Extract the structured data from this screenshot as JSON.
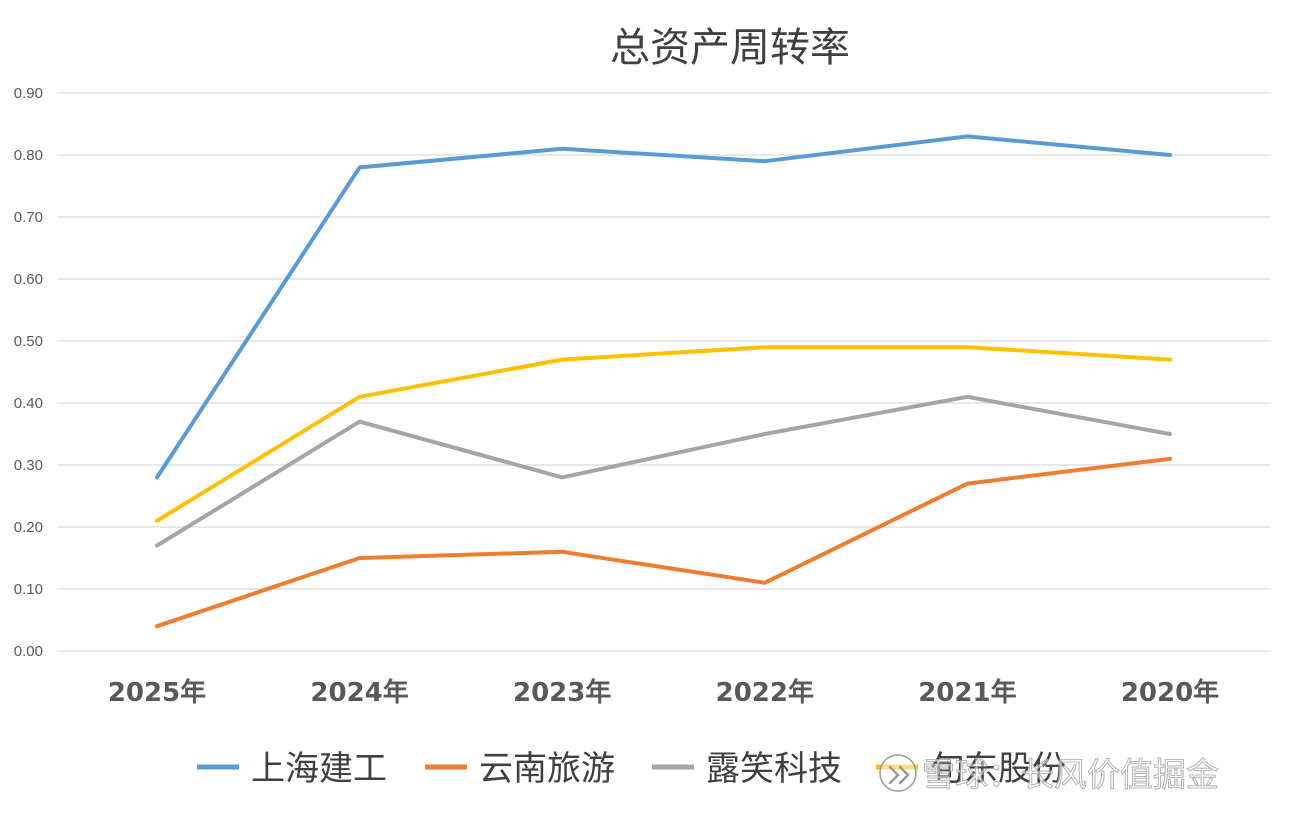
{
  "chart_data": {
    "type": "line",
    "title": "总资产周转率",
    "xlabel": "",
    "ylabel": "",
    "categories": [
      "2025年",
      "2024年",
      "2023年",
      "2022年",
      "2021年",
      "2020年"
    ],
    "ylim": [
      0,
      0.9
    ],
    "yticks": [
      "0.00",
      "0.10",
      "0.20",
      "0.30",
      "0.40",
      "0.50",
      "0.60",
      "0.70",
      "0.80",
      "0.90"
    ],
    "grid": true,
    "legend_position": "bottom",
    "series": [
      {
        "name": "上海建工",
        "color": "#5b9bd5",
        "values": [
          0.28,
          0.78,
          0.81,
          0.79,
          0.83,
          0.8
        ]
      },
      {
        "name": "云南旅游",
        "color": "#ed7d31",
        "values": [
          0.04,
          0.15,
          0.16,
          0.11,
          0.27,
          0.31
        ]
      },
      {
        "name": "露笑科技",
        "color": "#a5a5a5",
        "values": [
          0.17,
          0.37,
          0.28,
          0.35,
          0.41,
          0.35
        ]
      },
      {
        "name": "旬东股份",
        "color": "#ffc000",
        "values": [
          0.21,
          0.41,
          0.47,
          0.49,
          0.49,
          0.47
        ]
      }
    ]
  },
  "watermark": {
    "text": "雪球：长风价值掘金",
    "icon": "snowball-logo-icon"
  }
}
